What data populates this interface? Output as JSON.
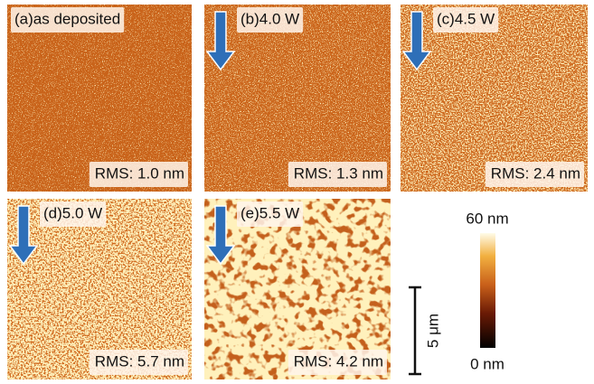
{
  "panels": [
    {
      "label": "(a)as deposited",
      "rms": "RMS: 1.0 nm"
    },
    {
      "label": "(b)4.0 W",
      "rms": "RMS: 1.3 nm"
    },
    {
      "label": "(c)4.5 W",
      "rms": "RMS: 2.4 nm"
    },
    {
      "label": "(d)5.0 W",
      "rms": "RMS: 5.7 nm"
    },
    {
      "label": "(e)5.5 W",
      "rms": "RMS: 4.2 nm"
    }
  ],
  "colorbar": {
    "max_label": "60 nm",
    "min_label": "0 nm"
  },
  "scale_bar": {
    "label": "5 μm"
  }
}
